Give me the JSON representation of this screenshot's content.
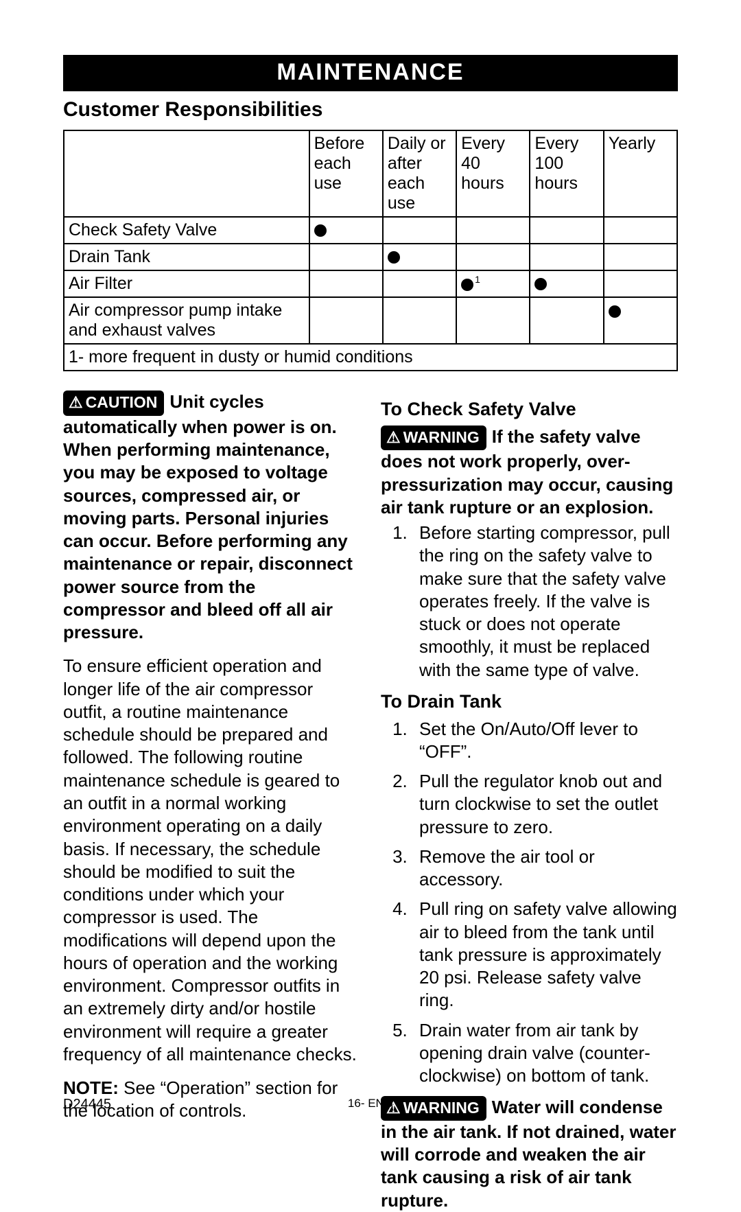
{
  "banner": "MAINTENANCE",
  "subtitle": "Customer Responsibilities",
  "table": {
    "headers": [
      "",
      "Before each use",
      "Daily or after each use",
      "Every 40 hours",
      "Every 100 hours",
      "Yearly"
    ],
    "rows": [
      {
        "label": "Check Safety Valve",
        "marks": [
          "●",
          "",
          "",
          "",
          ""
        ]
      },
      {
        "label": "Drain Tank",
        "marks": [
          "",
          "●",
          "",
          "",
          ""
        ]
      },
      {
        "label": "Air Filter",
        "marks": [
          "",
          "",
          "●¹",
          "●",
          ""
        ]
      },
      {
        "label": "Air compressor pump intake and exhaust valves",
        "marks": [
          "",
          "",
          "",
          "",
          "●"
        ]
      }
    ],
    "footnote": "1- more frequent in dusty or humid conditions"
  },
  "badges": {
    "caution": "CAUTION",
    "warning": "WARNING"
  },
  "left": {
    "caution_text": "Unit cycles automatically when power is on. When performing maintenance, you may be exposed to voltage sources, compressed air, or moving parts. Personal injuries can occur. Before performing any maintenance or repair, disconnect power source from the compressor and bleed off all air pressure.",
    "body": "To ensure efficient operation and longer life of the air compressor outfit, a routine maintenance schedule should be prepared and followed. The following routine maintenance schedule is geared to an outfit in a normal working environment operating on a daily basis. If necessary, the schedule should be modified to suit the conditions under which your compressor is used. The modifications will depend upon the hours of operation and the working environment. Compressor outfits in an extremely dirty and/or hostile environment will require a greater frequency of all maintenance checks.",
    "note_label": "NOTE:",
    "note_text": " See “Operation” section for the location of controls."
  },
  "right": {
    "check_head": "To Check Safety Valve",
    "check_warning": "If the safety valve does not work properly, over-pressurization may occur, causing air tank rupture or an explosion.",
    "check_steps": [
      "Before starting compressor, pull the ring on the safety valve to make sure that the safety valve operates freely. If the valve is stuck or does not operate smoothly, it must be replaced with the same type of  valve."
    ],
    "drain_head": "To Drain Tank",
    "drain_steps": [
      "Set the On/Auto/Off lever to “OFF”.",
      "Pull the regulator knob out and turn clockwise to set the outlet pressure to zero.",
      "Remove the air tool or accessory.",
      "Pull ring on safety valve allowing air to bleed from the tank until tank pressure is approximately 20 psi. Release safety valve ring.",
      "Drain water from air tank by opening drain valve (counter-clockwise) on bottom of tank."
    ],
    "drain_warning": "Water will condense in the air tank. If not drained, water will corrode and weaken the air tank causing a risk of air tank rupture."
  },
  "footer": {
    "left": "D24445",
    "center": "16- ENG"
  }
}
